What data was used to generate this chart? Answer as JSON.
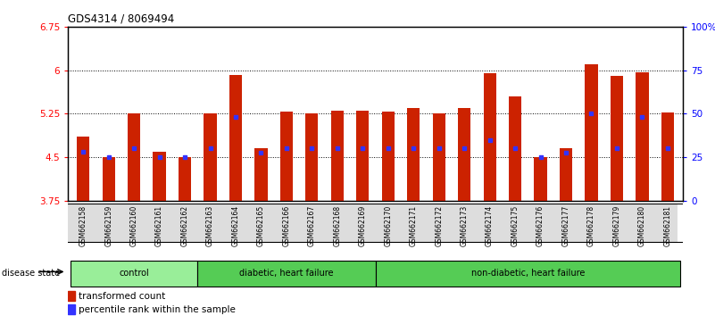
{
  "title": "GDS4314 / 8069494",
  "samples": [
    "GSM662158",
    "GSM662159",
    "GSM662160",
    "GSM662161",
    "GSM662162",
    "GSM662163",
    "GSM662164",
    "GSM662165",
    "GSM662166",
    "GSM662167",
    "GSM662168",
    "GSM662169",
    "GSM662170",
    "GSM662171",
    "GSM662172",
    "GSM662173",
    "GSM662174",
    "GSM662175",
    "GSM662176",
    "GSM662177",
    "GSM662178",
    "GSM662179",
    "GSM662180",
    "GSM662181"
  ],
  "bar_values": [
    4.85,
    4.5,
    5.25,
    4.6,
    4.5,
    5.25,
    5.92,
    4.65,
    5.28,
    5.25,
    5.3,
    5.3,
    5.28,
    5.35,
    5.25,
    5.35,
    5.95,
    5.55,
    4.5,
    4.65,
    6.1,
    5.9,
    5.97,
    5.27
  ],
  "blue_dot_values": [
    4.6,
    4.5,
    4.65,
    4.5,
    4.5,
    4.65,
    5.2,
    4.58,
    4.65,
    4.65,
    4.65,
    4.65,
    4.65,
    4.65,
    4.65,
    4.65,
    4.8,
    4.65,
    4.5,
    4.58,
    5.25,
    4.65,
    5.2,
    4.65
  ],
  "groups": [
    {
      "label": "control",
      "start": 0,
      "end": 4,
      "color": "#99ee99"
    },
    {
      "label": "diabetic, heart failure",
      "start": 5,
      "end": 11,
      "color": "#55cc55"
    },
    {
      "label": "non-diabetic, heart failure",
      "start": 12,
      "end": 23,
      "color": "#55cc55"
    }
  ],
  "ymin": 3.75,
  "ymax": 6.75,
  "yticks": [
    3.75,
    4.5,
    5.25,
    6.0,
    6.75
  ],
  "ytick_labels": [
    "3.75",
    "4.5",
    "5.25",
    "6",
    "6.75"
  ],
  "right_yticks": [
    0,
    25,
    50,
    75,
    100
  ],
  "right_ytick_labels": [
    "0",
    "25",
    "50",
    "75",
    "100%"
  ],
  "bar_color": "#cc2200",
  "dot_color": "#3333ff",
  "bg_color": "#ffffff",
  "legend_tc": "transformed count",
  "legend_pr": "percentile rank within the sample",
  "disease_state_label": "disease state"
}
